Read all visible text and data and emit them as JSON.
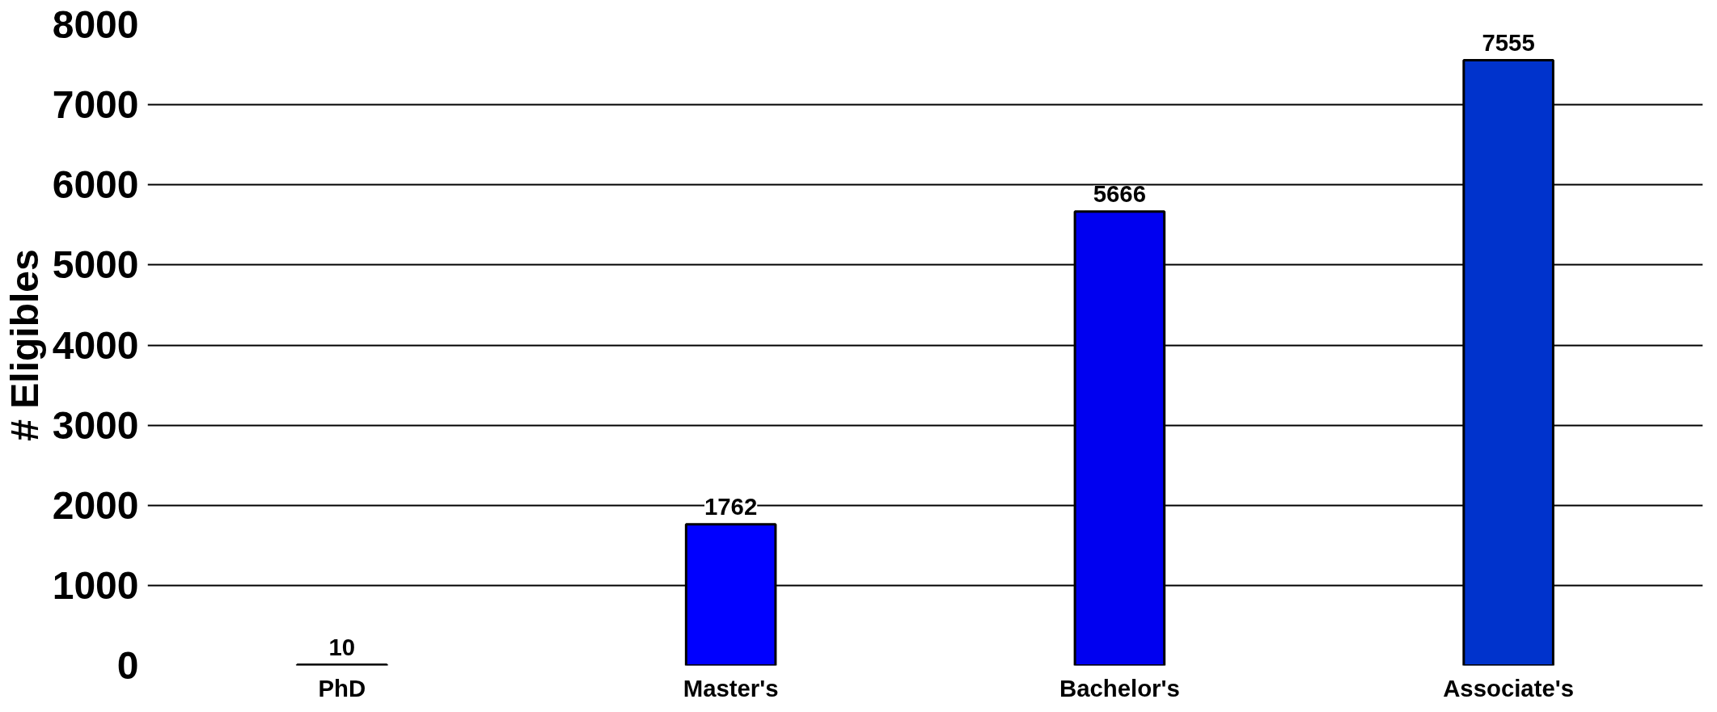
{
  "chart_data": {
    "type": "bar",
    "ylabel": "# Eligibles",
    "categories": [
      "PhD",
      "Master's",
      "Bachelor's",
      "Associate's"
    ],
    "values": [
      10,
      1762,
      5666,
      7555
    ],
    "colors": [
      "#808080",
      "#0000ff",
      "#0000f0",
      "#0033cc"
    ],
    "ylim": [
      0,
      8000
    ],
    "yticks": [
      0,
      1000,
      2000,
      3000,
      4000,
      5000,
      6000,
      7000,
      8000
    ],
    "grid": "y",
    "data_labels": true
  }
}
